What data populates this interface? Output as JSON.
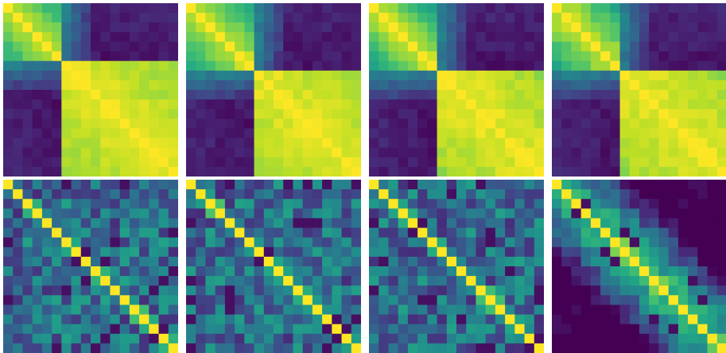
{
  "figure": {
    "rows": 2,
    "cols": 4
  },
  "chart_data": [
    {
      "type": "heatmap",
      "panel": "row1-col1",
      "colormap": "viridis",
      "size": 18,
      "pattern": "smooth-block",
      "boundary": 6,
      "seed": 11
    },
    {
      "type": "heatmap",
      "panel": "row1-col2",
      "colormap": "viridis",
      "size": 18,
      "pattern": "smooth-block",
      "boundary": 7,
      "seed": 23
    },
    {
      "type": "heatmap",
      "panel": "row1-col3",
      "colormap": "viridis",
      "size": 18,
      "pattern": "smooth-block",
      "boundary": 7,
      "seed": 37
    },
    {
      "type": "heatmap",
      "panel": "row1-col4",
      "colormap": "viridis",
      "size": 18,
      "pattern": "smooth-block",
      "boundary": 7,
      "seed": 41
    },
    {
      "type": "heatmap",
      "panel": "row2-col1",
      "colormap": "viridis",
      "size": 18,
      "pattern": "noisy-diagonal",
      "seed": 53
    },
    {
      "type": "heatmap",
      "panel": "row2-col2",
      "colormap": "viridis",
      "size": 18,
      "pattern": "noisy-diagonal",
      "seed": 67
    },
    {
      "type": "heatmap",
      "panel": "row2-col3",
      "colormap": "viridis",
      "size": 18,
      "pattern": "noisy-diagonal",
      "seed": 79
    },
    {
      "type": "heatmap",
      "panel": "row2-col4",
      "colormap": "viridis",
      "size": 18,
      "pattern": "banded-diagonal",
      "seed": 97
    }
  ]
}
